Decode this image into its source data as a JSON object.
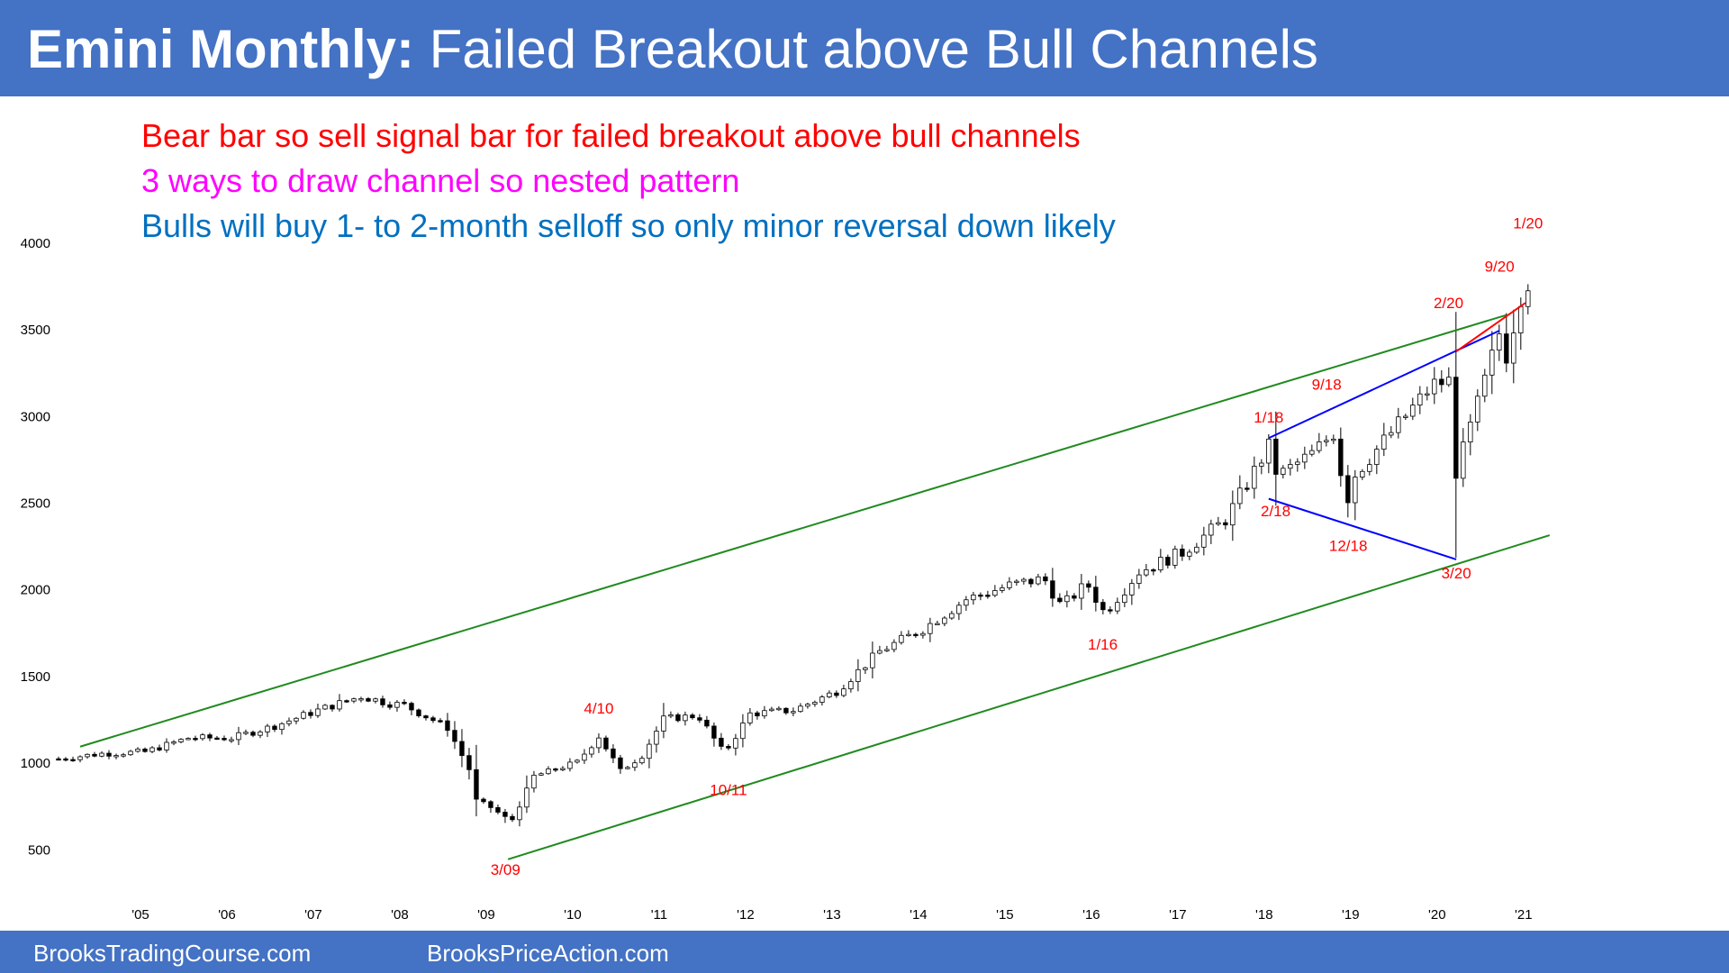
{
  "header": {
    "title_bold": "Emini Monthly:",
    "title_rest": "Failed Breakout above Bull Channels",
    "bg_color": "#4472c4"
  },
  "subtitles": [
    {
      "text": "Bear bar so sell signal bar for failed breakout above bull channels",
      "color": "#ff0000"
    },
    {
      "text": "3 ways to draw channel so nested pattern",
      "color": "#ff00ff"
    },
    {
      "text": "Bulls will buy 1- to 2-month selloff so only minor reversal down likely",
      "color": "#0070c0"
    }
  ],
  "footer": {
    "left": "BrooksTradingCourse.com",
    "right": "BrooksPriceAction.com"
  },
  "chart_data": {
    "type": "candlestick",
    "title": "",
    "xlabel": "",
    "ylabel": "",
    "x_range": [
      2004.0,
      2021.45
    ],
    "ylim": [
      200,
      4150
    ],
    "y_ticks": [
      500,
      1000,
      1500,
      2000,
      2500,
      3000,
      3500,
      4000
    ],
    "x_ticks": [
      {
        "label": "'05",
        "year": 2005
      },
      {
        "label": "'06",
        "year": 2006
      },
      {
        "label": "'07",
        "year": 2007
      },
      {
        "label": "'08",
        "year": 2008
      },
      {
        "label": "'09",
        "year": 2009
      },
      {
        "label": "'10",
        "year": 2010
      },
      {
        "label": "'11",
        "year": 2011
      },
      {
        "label": "'12",
        "year": 2012
      },
      {
        "label": "'13",
        "year": 2013
      },
      {
        "label": "'14",
        "year": 2014
      },
      {
        "label": "'15",
        "year": 2015
      },
      {
        "label": "'16",
        "year": 2016
      },
      {
        "label": "'17",
        "year": 2017
      },
      {
        "label": "'18",
        "year": 2018
      },
      {
        "label": "'19",
        "year": 2019
      },
      {
        "label": "'20",
        "year": 2020
      },
      {
        "label": "'21",
        "year": 2021
      }
    ],
    "grid": false,
    "monthly_close_anchors": [
      [
        2004.0,
        1020
      ],
      [
        2004.5,
        1050
      ],
      [
        2005.0,
        1060
      ],
      [
        2005.5,
        1140
      ],
      [
        2006.0,
        1140
      ],
      [
        2006.5,
        1210
      ],
      [
        2007.0,
        1300
      ],
      [
        2007.5,
        1380
      ],
      [
        2007.83,
        1340
      ],
      [
        2008.0,
        1330
      ],
      [
        2008.5,
        1200
      ],
      [
        2008.75,
        960
      ],
      [
        2008.83,
        780
      ],
      [
        2009.0,
        740
      ],
      [
        2009.17,
        680
      ],
      [
        2009.2,
        620
      ],
      [
        2009.5,
        920
      ],
      [
        2010.0,
        1000
      ],
      [
        2010.25,
        1150
      ],
      [
        2010.5,
        950
      ],
      [
        2010.75,
        1040
      ],
      [
        2011.0,
        1250
      ],
      [
        2011.4,
        1270
      ],
      [
        2011.7,
        1050
      ],
      [
        2012.0,
        1280
      ],
      [
        2012.5,
        1300
      ],
      [
        2013.0,
        1410
      ],
      [
        2013.5,
        1640
      ],
      [
        2014.0,
        1770
      ],
      [
        2014.5,
        1940
      ],
      [
        2015.0,
        2020
      ],
      [
        2015.4,
        2060
      ],
      [
        2015.6,
        1900
      ],
      [
        2015.9,
        2030
      ],
      [
        2016.1,
        1860
      ],
      [
        2016.5,
        2100
      ],
      [
        2017.0,
        2210
      ],
      [
        2017.5,
        2400
      ],
      [
        2018.0,
        2820
      ],
      [
        2018.1,
        2650
      ],
      [
        2018.5,
        2780
      ],
      [
        2018.75,
        2900
      ],
      [
        2018.9,
        2500
      ],
      [
        2019.0,
        2660
      ],
      [
        2019.5,
        2950
      ],
      [
        2019.9,
        3180
      ],
      [
        2020.1,
        3200
      ],
      [
        2020.17,
        2650
      ],
      [
        2020.25,
        2800
      ],
      [
        2020.5,
        3200
      ],
      [
        2020.67,
        3480
      ],
      [
        2020.75,
        3350
      ],
      [
        2020.92,
        3700
      ],
      [
        2021.0,
        3770
      ]
    ],
    "monthly_lows": [
      {
        "label": "3/09",
        "year": 2009.17,
        "low": 650
      },
      {
        "label": "3/20",
        "year": 2020.2,
        "low": 2180
      }
    ],
    "trend_lines": [
      {
        "name": "upper-bull-channel",
        "color": "#1f8a1f",
        "points": [
          [
            2004.25,
            1090
          ],
          [
            2020.75,
            3580
          ]
        ]
      },
      {
        "name": "lower-bull-channel",
        "color": "#1f8a1f",
        "points": [
          [
            2009.2,
            440
          ],
          [
            2021.25,
            2310
          ]
        ]
      },
      {
        "name": "upper-wedge",
        "color": "#0000ff",
        "points": [
          [
            2018.0,
            2870
          ],
          [
            2020.67,
            3490
          ]
        ]
      },
      {
        "name": "lower-wedge",
        "color": "#0000ff",
        "points": [
          [
            2018.0,
            2520
          ],
          [
            2020.17,
            2170
          ]
        ]
      },
      {
        "name": "top-red-line",
        "color": "#ff0000",
        "points": [
          [
            2020.17,
            3370
          ],
          [
            2020.97,
            3650
          ]
        ]
      }
    ],
    "annotations": [
      {
        "text": "3/09",
        "x": 2009.17,
        "y": 350,
        "color": "#ff0000"
      },
      {
        "text": "4/10",
        "x": 2010.25,
        "y": 1280,
        "color": "#ff0000"
      },
      {
        "text": "10/11",
        "x": 2011.75,
        "y": 810,
        "color": "#ff0000"
      },
      {
        "text": "1/16",
        "x": 2016.08,
        "y": 1650,
        "color": "#ff0000"
      },
      {
        "text": "1/18",
        "x": 2018.0,
        "y": 2960,
        "color": "#ff0000"
      },
      {
        "text": "2/18",
        "x": 2018.08,
        "y": 2420,
        "color": "#ff0000"
      },
      {
        "text": "9/18",
        "x": 2018.67,
        "y": 3150,
        "color": "#ff0000"
      },
      {
        "text": "12/18",
        "x": 2018.92,
        "y": 2220,
        "color": "#ff0000"
      },
      {
        "text": "2/20",
        "x": 2020.08,
        "y": 3620,
        "color": "#ff0000"
      },
      {
        "text": "3/20",
        "x": 2020.17,
        "y": 2060,
        "color": "#ff0000"
      },
      {
        "text": "9/20",
        "x": 2020.67,
        "y": 3830,
        "color": "#ff0000"
      },
      {
        "text": "1/20",
        "x": 2021.0,
        "y": 4080,
        "color": "#ff0000"
      }
    ]
  }
}
